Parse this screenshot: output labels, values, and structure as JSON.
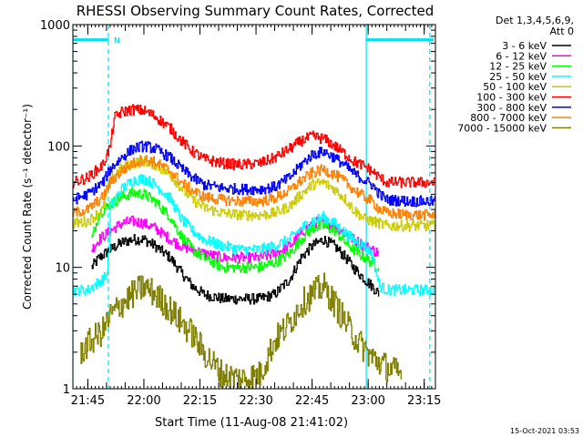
{
  "chart_data": {
    "type": "line",
    "title": "RHESSI Observing Summary Count Rates, Corrected",
    "xlabel": "Start Time (11-Aug-08 21:41:02)",
    "ylabel": "Corrected Count Rate (s⁻¹ detector⁻¹)",
    "yscale": "log",
    "ylim": [
      1,
      1000
    ],
    "xlim_minutes": [
      0,
      97
    ],
    "x_unit": "minutes after 21:41:02",
    "x_ticks": [
      {
        "label": "21:45",
        "minutes": 4
      },
      {
        "label": "22:00",
        "minutes": 19
      },
      {
        "label": "22:15",
        "minutes": 34
      },
      {
        "label": "22:30",
        "minutes": 49
      },
      {
        "label": "22:45",
        "minutes": 64
      },
      {
        "label": "23:00",
        "minutes": 79
      },
      {
        "label": "23:15",
        "minutes": 94
      }
    ],
    "y_ticks": [
      {
        "label": "1",
        "value": 1
      },
      {
        "label": "10",
        "value": 10
      },
      {
        "label": "100",
        "value": 100
      },
      {
        "label": "1000",
        "value": 1000
      }
    ],
    "legend_header": [
      "Det 1,3,4,5,6,9,",
      "Att 0"
    ],
    "legend_position": "right",
    "timestamp": "15-Oct-2021 03:53",
    "night_markers": [
      {
        "type": "solid_line",
        "minutes": 0
      },
      {
        "type": "dashed_line",
        "minutes": 9.5
      },
      {
        "type": "solid_line",
        "minutes": 78.5
      },
      {
        "type": "dashed_line",
        "minutes": 95.5
      }
    ],
    "flag_bars": [
      {
        "label": "N",
        "start": 0,
        "end": 9.5,
        "y": 750
      },
      {
        "label": "",
        "start": 78.5,
        "end": 96.5,
        "y": 750
      }
    ],
    "series": [
      {
        "name": "3 - 6 keV",
        "color": "#000000",
        "x": [
          5,
          7,
          10,
          13,
          16,
          19,
          22,
          26,
          29,
          32,
          35,
          40,
          45,
          50,
          54,
          58,
          61,
          64,
          67,
          70,
          73,
          75,
          78,
          80,
          82
        ],
        "y": [
          10,
          12,
          14,
          16,
          17,
          17,
          15,
          12,
          9,
          7,
          6,
          5.5,
          5.5,
          5.5,
          6,
          8,
          12,
          15,
          17,
          15,
          12,
          10,
          8,
          7,
          6
        ]
      },
      {
        "name": "6 - 12 keV",
        "color": "#ff00ff",
        "x": [
          5,
          7,
          10,
          13,
          16,
          19,
          22,
          26,
          29,
          32,
          35,
          40,
          45,
          50,
          54,
          58,
          61,
          64,
          67,
          70,
          73,
          75,
          78,
          80,
          82
        ],
        "y": [
          14,
          17,
          20,
          23,
          24,
          23,
          21,
          17,
          15,
          14,
          13,
          12,
          12,
          12,
          13,
          15,
          19,
          23,
          24,
          22,
          19,
          17,
          15,
          14,
          13
        ]
      },
      {
        "name": "12 - 25 keV",
        "color": "#00ff00",
        "x": [
          5,
          7,
          10,
          13,
          16,
          19,
          22,
          26,
          29,
          32,
          35,
          40,
          45,
          50,
          54,
          58,
          61,
          64,
          67,
          70,
          73,
          75,
          78,
          80,
          82
        ],
        "y": [
          17,
          28,
          33,
          38,
          41,
          40,
          35,
          26,
          18,
          14,
          12,
          10,
          10,
          10,
          11,
          13,
          17,
          21,
          22,
          20,
          16,
          14,
          12,
          11,
          10
        ]
      },
      {
        "name": "25 - 50 keV",
        "color": "#00ffff",
        "x": [
          0,
          4,
          8,
          9,
          9.6,
          10,
          13,
          16,
          19,
          22,
          26,
          29,
          32,
          35,
          40,
          45,
          50,
          54,
          58,
          61,
          64,
          67,
          70,
          73,
          75,
          78,
          80,
          82,
          84,
          90,
          97
        ],
        "y": [
          6.5,
          6.5,
          8,
          8.5,
          14,
          32,
          44,
          52,
          54,
          48,
          37,
          25,
          20,
          17,
          15,
          14,
          14,
          15,
          17,
          21,
          24,
          26,
          23,
          19,
          17,
          15,
          13,
          7,
          6.5,
          6.5,
          6.5
        ]
      },
      {
        "name": "50 - 100 keV",
        "color": "#cccc00",
        "x": [
          0,
          4,
          8,
          10,
          13,
          16,
          19,
          22,
          26,
          29,
          32,
          35,
          40,
          45,
          50,
          54,
          58,
          61,
          64,
          67,
          70,
          73,
          75,
          78,
          80,
          82,
          84,
          90,
          97
        ],
        "y": [
          23,
          24,
          30,
          55,
          65,
          72,
          75,
          70,
          58,
          45,
          36,
          31,
          28,
          27,
          27,
          28,
          32,
          40,
          48,
          50,
          44,
          36,
          30,
          25,
          24,
          23,
          22,
          22,
          22
        ]
      },
      {
        "name": "100 - 300 keV",
        "color": "#ff0000",
        "x": [
          0,
          4,
          8,
          10,
          11,
          13,
          16,
          19,
          22,
          26,
          29,
          32,
          35,
          40,
          45,
          50,
          54,
          58,
          61,
          64,
          67,
          70,
          73,
          75,
          78,
          80,
          82,
          84,
          90,
          97
        ],
        "y": [
          50,
          55,
          70,
          100,
          170,
          190,
          200,
          195,
          175,
          140,
          110,
          90,
          78,
          72,
          70,
          72,
          80,
          95,
          110,
          120,
          115,
          100,
          85,
          75,
          68,
          62,
          55,
          50,
          50,
          50
        ]
      },
      {
        "name": "300 - 800 keV",
        "color": "#0000ff",
        "x": [
          0,
          4,
          8,
          10,
          13,
          16,
          19,
          22,
          26,
          29,
          32,
          35,
          40,
          45,
          50,
          54,
          58,
          61,
          64,
          67,
          70,
          73,
          75,
          78,
          80,
          82,
          84,
          90,
          97
        ],
        "y": [
          36,
          40,
          50,
          65,
          80,
          95,
          100,
          95,
          80,
          65,
          55,
          48,
          45,
          44,
          44,
          46,
          55,
          70,
          85,
          90,
          80,
          68,
          60,
          52,
          48,
          40,
          36,
          35,
          35
        ]
      },
      {
        "name": "800 - 7000 keV",
        "color": "#ff8000",
        "x": [
          0,
          4,
          8,
          10,
          13,
          16,
          19,
          22,
          26,
          29,
          32,
          35,
          40,
          45,
          50,
          54,
          58,
          61,
          64,
          67,
          70,
          73,
          75,
          78,
          80,
          82,
          84,
          90,
          97
        ],
        "y": [
          28,
          30,
          38,
          50,
          62,
          72,
          78,
          73,
          62,
          50,
          43,
          38,
          36,
          35,
          35,
          37,
          43,
          52,
          60,
          64,
          58,
          50,
          44,
          38,
          35,
          30,
          28,
          27,
          27
        ]
      },
      {
        "name": "7000 - 15000 keV",
        "color": "#808000",
        "x": [
          2,
          5,
          8,
          10,
          13,
          16,
          19,
          22,
          26,
          29,
          32,
          35,
          40,
          45,
          50,
          54,
          58,
          61,
          64,
          67,
          70,
          73,
          76,
          80,
          84,
          88
        ],
        "y": [
          2.0,
          2.5,
          3.0,
          4.0,
          5.0,
          6.0,
          7.0,
          6.0,
          4.5,
          3.5,
          2.8,
          2.0,
          1.3,
          1.2,
          1.3,
          2.5,
          3.5,
          5.0,
          6.0,
          7.0,
          5.0,
          3.5,
          2.5,
          1.8,
          1.5,
          1.3
        ]
      }
    ]
  }
}
